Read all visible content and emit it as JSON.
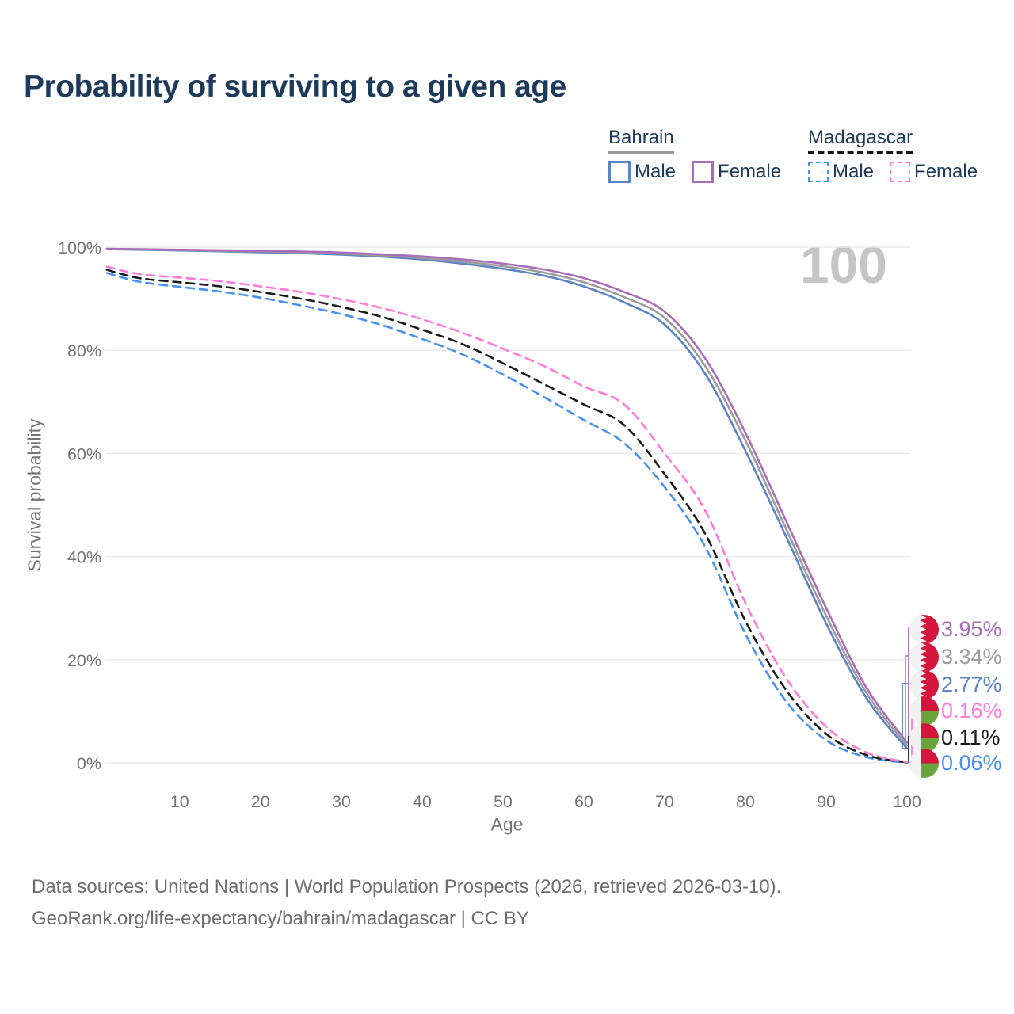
{
  "title": "Probability of surviving to a given age",
  "watermark": "100",
  "legend": {
    "groups": [
      {
        "name": "Bahrain",
        "line_style": "solid",
        "items": [
          {
            "label": "Male",
            "color": "#5b84c4"
          },
          {
            "label": "Female",
            "color": "#a96cb8"
          }
        ]
      },
      {
        "name": "Madagascar",
        "line_style": "dashed",
        "items": [
          {
            "label": "Male",
            "color": "#4691f0"
          },
          {
            "label": "Female",
            "color": "#ff7ad9"
          }
        ]
      }
    ]
  },
  "chart_data": {
    "type": "line",
    "title": "Probability of surviving to a given age",
    "xlabel": "Age",
    "ylabel": "Survival probability",
    "x_range": [
      1,
      100
    ],
    "y_range_percent": [
      0,
      100
    ],
    "x_ticks": [
      10,
      20,
      30,
      40,
      50,
      60,
      70,
      80,
      90,
      100
    ],
    "y_ticks": [
      "0%",
      "20%",
      "40%",
      "60%",
      "80%",
      "100%"
    ],
    "grid": "horizontal",
    "x": [
      1,
      5,
      10,
      15,
      20,
      25,
      30,
      35,
      40,
      45,
      50,
      55,
      60,
      65,
      70,
      75,
      80,
      85,
      90,
      95,
      100
    ],
    "series": [
      {
        "name": "Bahrain Female",
        "country": "Bahrain",
        "sex": "female",
        "color": "#a96cb8",
        "dashed": false,
        "end_label": "3.95%",
        "values": [
          99.7,
          99.6,
          99.5,
          99.4,
          99.3,
          99.15,
          98.95,
          98.6,
          98.2,
          97.6,
          96.8,
          95.7,
          94.0,
          91.3,
          87.5,
          78.5,
          64.0,
          47.0,
          30.0,
          14.5,
          3.95
        ]
      },
      {
        "name": "Bahrain Both sexes",
        "country": "Bahrain",
        "sex": "both",
        "color": "#9c9c9c",
        "dashed": false,
        "end_label": "3.34%",
        "values": [
          99.65,
          99.55,
          99.45,
          99.3,
          99.2,
          99.0,
          98.75,
          98.4,
          97.9,
          97.2,
          96.3,
          95.1,
          93.2,
          90.3,
          86.3,
          77.0,
          62.5,
          45.5,
          28.5,
          13.5,
          3.34
        ]
      },
      {
        "name": "Bahrain Male",
        "country": "Bahrain",
        "sex": "male",
        "color": "#5b84c4",
        "dashed": false,
        "end_label": "2.77%",
        "values": [
          99.6,
          99.5,
          99.35,
          99.2,
          99.0,
          98.85,
          98.55,
          98.15,
          97.6,
          96.8,
          95.8,
          94.5,
          92.4,
          89.3,
          85.0,
          75.5,
          60.5,
          44.0,
          27.0,
          12.5,
          2.77
        ]
      },
      {
        "name": "Madagascar Female",
        "country": "Madagascar",
        "sex": "female",
        "color": "#ff7ad9",
        "dashed": true,
        "end_label": "0.16%",
        "values": [
          96.2,
          94.8,
          94.1,
          93.4,
          92.4,
          91.3,
          89.9,
          88.2,
          86.0,
          83.4,
          80.3,
          77.0,
          73.0,
          69.5,
          60.0,
          49.0,
          31.0,
          16.5,
          7.0,
          2.0,
          0.16
        ]
      },
      {
        "name": "Madagascar Both sexes",
        "country": "Madagascar",
        "sex": "both",
        "color": "#1a1a1a",
        "dashed": true,
        "end_label": "0.11%",
        "values": [
          95.6,
          94.0,
          93.2,
          92.4,
          91.3,
          90.0,
          88.4,
          86.5,
          84.0,
          81.2,
          77.5,
          73.5,
          69.5,
          65.5,
          56.0,
          44.5,
          27.5,
          14.2,
          5.6,
          1.5,
          0.11
        ]
      },
      {
        "name": "Madagascar Male",
        "country": "Madagascar",
        "sex": "male",
        "color": "#4691f0",
        "dashed": true,
        "end_label": "0.06%",
        "values": [
          95.0,
          93.3,
          92.3,
          91.4,
          90.2,
          88.7,
          87.0,
          84.9,
          82.2,
          79.2,
          75.3,
          71.0,
          66.5,
          62.0,
          53.5,
          42.0,
          25.0,
          12.0,
          4.4,
          1.1,
          0.06
        ]
      }
    ],
    "legend_position": "top-right"
  },
  "footer": {
    "line1": "Data sources: United Nations | World Population Prospects (2026, retrieved 2026-03-10).",
    "line2": "GeoRank.org/life-expectancy/bahrain/madagascar | CC BY"
  }
}
